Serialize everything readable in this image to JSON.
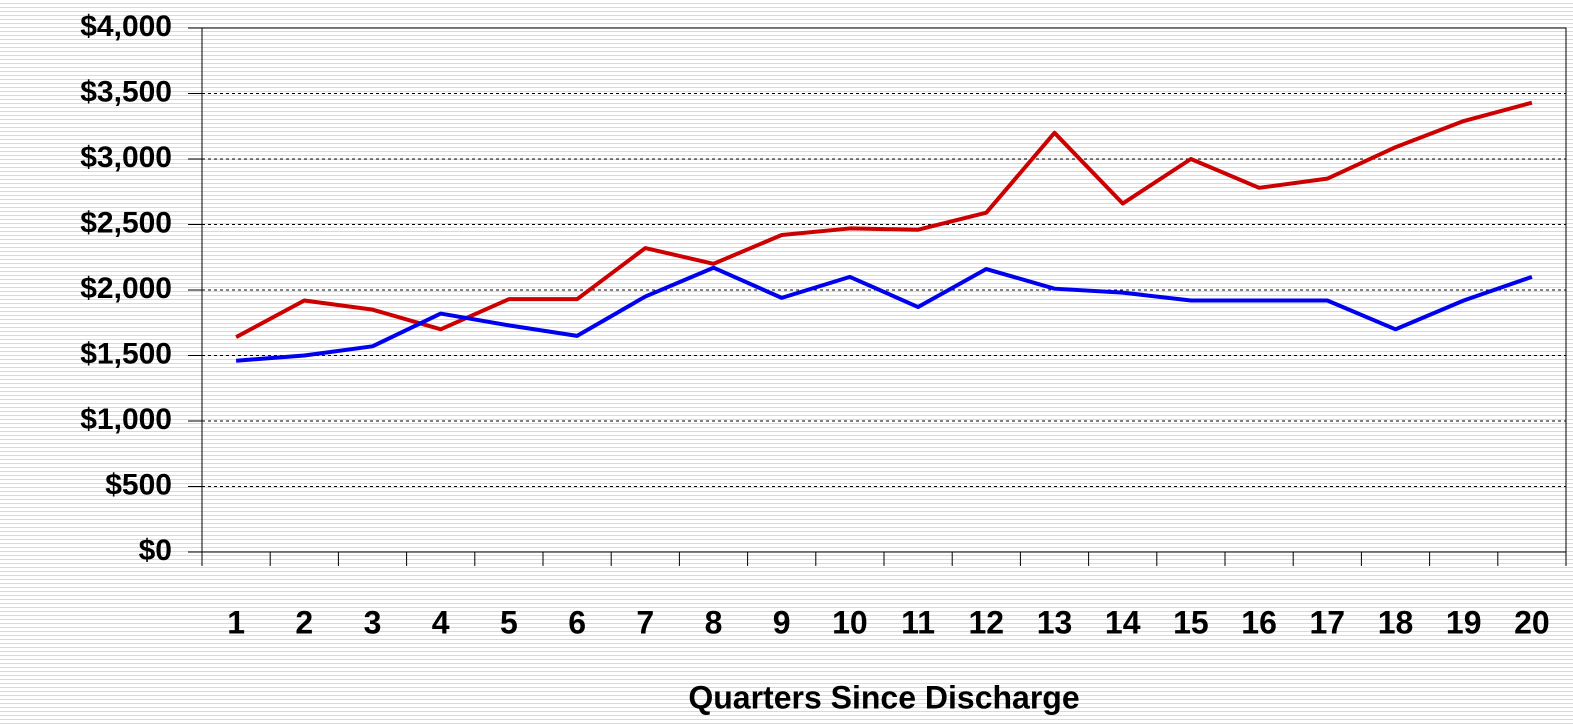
{
  "chart_data": {
    "type": "line",
    "x_label": "Quarters Since Discharge",
    "categories": [
      1,
      2,
      3,
      4,
      5,
      6,
      7,
      8,
      9,
      10,
      11,
      12,
      13,
      14,
      15,
      16,
      17,
      18,
      19,
      20
    ],
    "series": [
      {
        "color": "#cc0000",
        "values": [
          1640,
          1920,
          1850,
          1700,
          1930,
          1930,
          2320,
          2200,
          2420,
          2470,
          2460,
          2590,
          3200,
          2660,
          3000,
          2780,
          2850,
          3090,
          3290,
          3430
        ]
      },
      {
        "color": "#0000ee",
        "values": [
          1460,
          1500,
          1570,
          1820,
          1730,
          1650,
          1950,
          2170,
          1940,
          2100,
          1870,
          2160,
          2010,
          1980,
          1920,
          1920,
          1920,
          1700,
          1920,
          2100
        ]
      }
    ],
    "ylim": [
      0,
      4000
    ],
    "yticks": [
      {
        "value": 0,
        "label": "$0"
      },
      {
        "value": 500,
        "label": "$500"
      },
      {
        "value": 1000,
        "label": "$1,000"
      },
      {
        "value": 1500,
        "label": "$1,500"
      },
      {
        "value": 2000,
        "label": "$2,000"
      },
      {
        "value": 2500,
        "label": "$2,500"
      },
      {
        "value": 3000,
        "label": "$3,000"
      },
      {
        "value": 3500,
        "label": "$3,500"
      },
      {
        "value": 4000,
        "label": "$4,000"
      }
    ],
    "grid": true
  }
}
